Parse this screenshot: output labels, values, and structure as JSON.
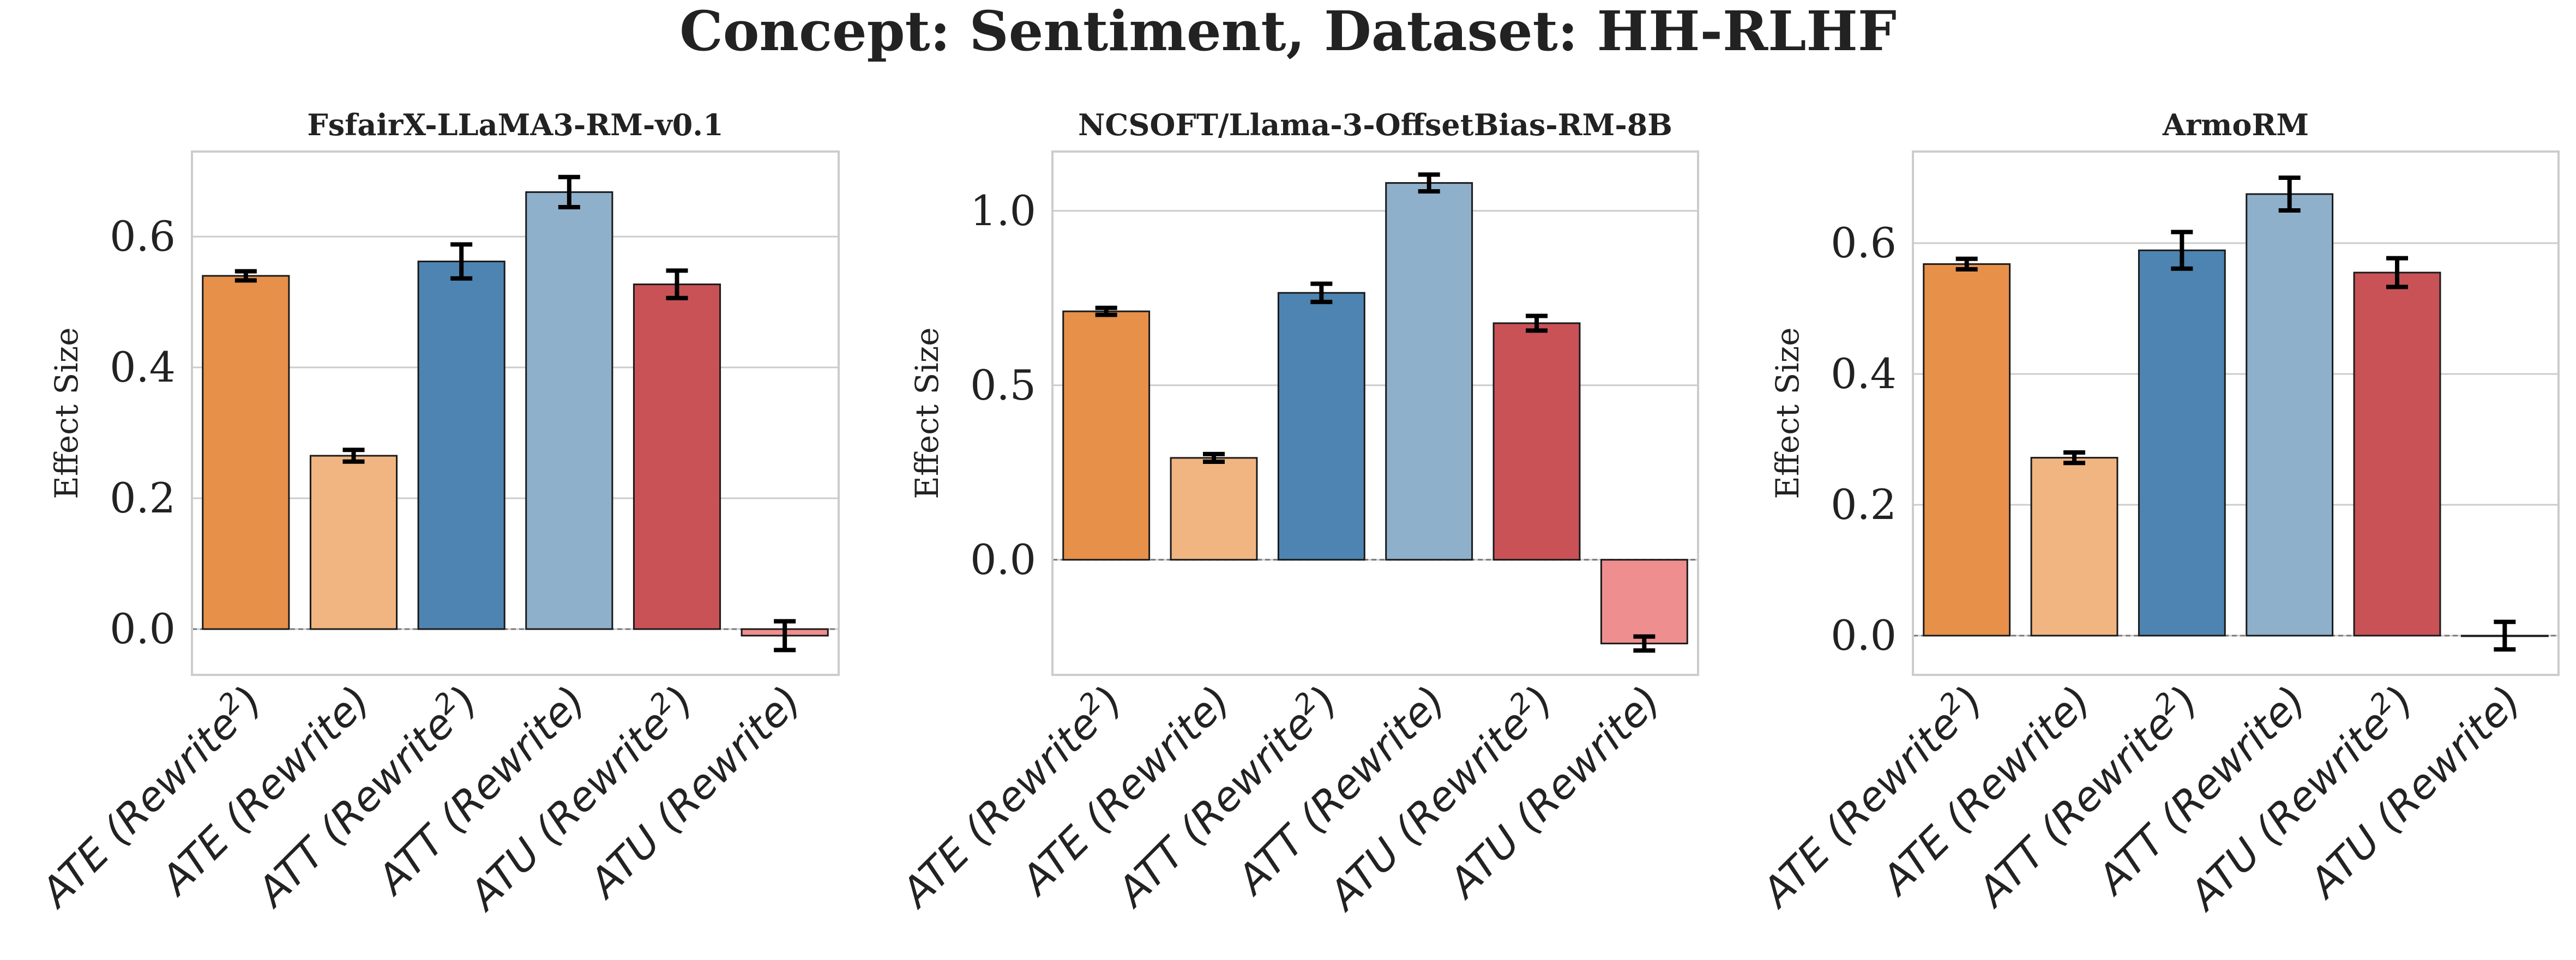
{
  "figure": {
    "title": "Concept: Sentiment, Dataset: HH-RLHF"
  },
  "colors": {
    "ATE (Rewrite²)": "#e6904a",
    "ATE (Rewrite)": "#f0b580",
    "ATT (Rewrite²)": "#4e84b1",
    "ATT (Rewrite)": "#8eb0cb",
    "ATU (Rewrite²)": "#c95256",
    "ATU (Rewrite)": "#ef8e8e",
    "grid": "#cccccc",
    "frame": "#cccccc"
  },
  "chart_data": [
    {
      "type": "bar",
      "title": "FsfairX-LLaMA3-RM-v0.1",
      "ylabel": "Effect Size",
      "ylim": [
        -0.07,
        0.73
      ],
      "yticks": [
        "0.0",
        "0.2",
        "0.4",
        "0.6"
      ],
      "categories": [
        {
          "base": "ATE (Rewrite",
          "sup": "2",
          "tail": ")"
        },
        {
          "base": "ATE (Rewrite)",
          "sup": "",
          "tail": ""
        },
        {
          "base": "ATT (Rewrite",
          "sup": "2",
          "tail": ")"
        },
        {
          "base": "ATT (Rewrite)",
          "sup": "",
          "tail": ""
        },
        {
          "base": "ATU (Rewrite",
          "sup": "2",
          "tail": ")"
        },
        {
          "base": "ATU (Rewrite)",
          "sup": "",
          "tail": ""
        }
      ],
      "values": [
        0.54,
        0.265,
        0.562,
        0.668,
        0.527,
        -0.01
      ],
      "errors": [
        0.007,
        0.009,
        0.026,
        0.023,
        0.021,
        0.022
      ],
      "grid": true
    },
    {
      "type": "bar",
      "title": "NCSOFT/Llama-3-OffsetBias-RM-8B",
      "ylabel": "Effect Size",
      "ylim": [
        -0.33,
        1.17
      ],
      "yticks": [
        "0.0",
        "0.5",
        "1.0"
      ],
      "categories": [
        {
          "base": "ATE (Rewrite",
          "sup": "2",
          "tail": ")"
        },
        {
          "base": "ATE (Rewrite)",
          "sup": "",
          "tail": ""
        },
        {
          "base": "ATT (Rewrite",
          "sup": "2",
          "tail": ")"
        },
        {
          "base": "ATT (Rewrite)",
          "sup": "",
          "tail": ""
        },
        {
          "base": "ATU (Rewrite",
          "sup": "2",
          "tail": ")"
        },
        {
          "base": "ATU (Rewrite)",
          "sup": "",
          "tail": ""
        }
      ],
      "values": [
        0.712,
        0.292,
        0.765,
        1.08,
        0.678,
        -0.24
      ],
      "errors": [
        0.01,
        0.011,
        0.026,
        0.024,
        0.021,
        0.02
      ],
      "grid": true
    },
    {
      "type": "bar",
      "title": "ArmoRM",
      "ylabel": "Effect Size",
      "ylim": [
        -0.06,
        0.74
      ],
      "yticks": [
        "0.0",
        "0.2",
        "0.4",
        "0.6"
      ],
      "categories": [
        {
          "base": "ATE (Rewrite",
          "sup": "2",
          "tail": ")"
        },
        {
          "base": "ATE (Rewrite)",
          "sup": "",
          "tail": ""
        },
        {
          "base": "ATT (Rewrite",
          "sup": "2",
          "tail": ")"
        },
        {
          "base": "ATT (Rewrite)",
          "sup": "",
          "tail": ""
        },
        {
          "base": "ATU (Rewrite",
          "sup": "2",
          "tail": ")"
        },
        {
          "base": "ATU (Rewrite)",
          "sup": "",
          "tail": ""
        }
      ],
      "values": [
        0.568,
        0.272,
        0.589,
        0.675,
        0.555,
        0.0
      ],
      "errors": [
        0.008,
        0.008,
        0.028,
        0.025,
        0.022,
        0.021
      ],
      "grid": true
    }
  ]
}
